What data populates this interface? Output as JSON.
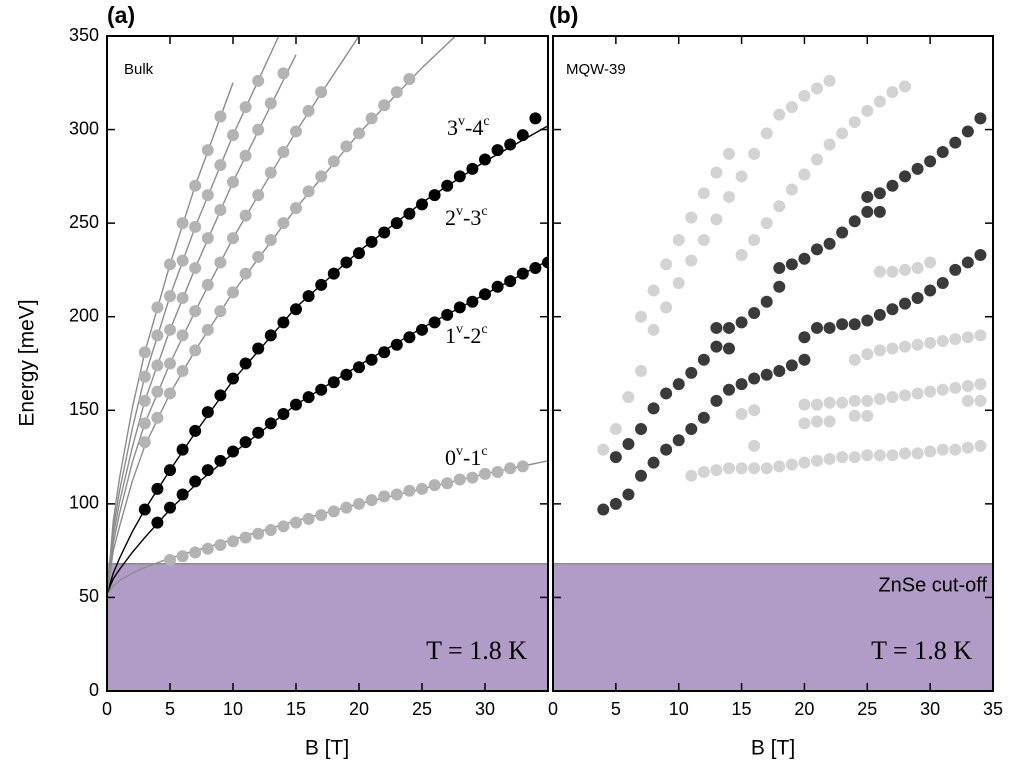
{
  "chart_data": [
    {
      "type": "scatter",
      "label": "(a)",
      "sample": "Bulk",
      "xlabel": "B [T]",
      "ylabel": "Energy [meV]",
      "xlim": [
        0,
        35
      ],
      "ylim": [
        0,
        350
      ],
      "xticks": [
        0,
        5,
        10,
        15,
        20,
        25,
        30
      ],
      "yticks": [
        0,
        50,
        100,
        150,
        200,
        250,
        300,
        350
      ],
      "ytick_labels": true,
      "cutoff": 68,
      "cutoff_color": "#b19cc7",
      "temperature_label": "T = 1.8 K",
      "annotations": [
        [
          "0",
          "v",
          "-1",
          "c"
        ],
        [
          "1",
          "v",
          "-2",
          "c"
        ],
        [
          "2",
          "v",
          "-3",
          "c"
        ],
        [
          "3",
          "v",
          "-4",
          "c"
        ]
      ],
      "series": [
        {
          "mode": "line",
          "color": "#8c8c8c",
          "x": [
            0,
            0.5,
            1,
            2,
            3,
            5,
            7,
            10,
            15,
            20,
            25,
            30,
            35
          ],
          "values": [
            52,
            56,
            59,
            63,
            66,
            71,
            75,
            81,
            91,
            100,
            108,
            116,
            123
          ]
        },
        {
          "mode": "line",
          "color": "#000000",
          "x": [
            0,
            0.5,
            1,
            2,
            3,
            5,
            7,
            10,
            15,
            20,
            25,
            30,
            35
          ],
          "values": [
            52,
            60,
            65,
            74,
            82,
            97,
            110,
            127,
            153,
            174,
            194,
            212,
            230
          ]
        },
        {
          "mode": "line",
          "color": "#000000",
          "x": [
            0,
            0.5,
            1,
            2,
            3,
            5,
            7,
            10,
            15,
            20,
            25,
            30,
            35
          ],
          "values": [
            52,
            63,
            71,
            85,
            97,
            118,
            138,
            166,
            205,
            235,
            261,
            283,
            302
          ]
        },
        {
          "mode": "line",
          "color": "#8c8c8c",
          "x": [
            0,
            0.5,
            1,
            2,
            3,
            5,
            7,
            10,
            15,
            20,
            25,
            30
          ],
          "values": [
            52,
            75,
            88,
            112,
            131,
            159,
            182,
            213,
            258,
            298,
            333,
            365
          ]
        },
        {
          "mode": "line",
          "color": "#8c8c8c",
          "x": [
            0,
            0.5,
            1,
            2,
            3,
            5,
            7,
            10,
            15,
            20
          ],
          "values": [
            52,
            79,
            95,
            122,
            143,
            175,
            203,
            242,
            299,
            350
          ]
        },
        {
          "mode": "line",
          "color": "#8c8c8c",
          "x": [
            0,
            0.5,
            1,
            2,
            3,
            5,
            7,
            10,
            15
          ],
          "values": [
            52,
            83,
            101,
            130,
            155,
            193,
            226,
            272,
            340
          ]
        },
        {
          "mode": "line",
          "color": "#8c8c8c",
          "x": [
            0,
            0.5,
            1,
            2,
            3,
            5,
            7,
            10,
            15
          ],
          "values": [
            52,
            87,
            107,
            140,
            168,
            211,
            248,
            297,
            370
          ]
        },
        {
          "mode": "line",
          "color": "#8c8c8c",
          "x": [
            0,
            0.5,
            1,
            2,
            3,
            5,
            7,
            10
          ],
          "values": [
            52,
            91,
            114,
            151,
            181,
            228,
            270,
            325
          ]
        },
        {
          "mode": "markers",
          "color": "#b3b3b3",
          "x": [
            5,
            6,
            7,
            8,
            9,
            10,
            11,
            12,
            13,
            14,
            15,
            16,
            17,
            18,
            19,
            20,
            21,
            22,
            23,
            24,
            25,
            26,
            27,
            28,
            29,
            30,
            31,
            32,
            33
          ],
          "values": [
            70,
            72,
            74,
            76,
            78,
            80,
            82,
            84,
            86,
            88,
            90,
            92,
            94,
            96,
            98,
            100,
            102,
            104,
            105,
            107,
            108,
            110,
            111,
            113,
            114,
            116,
            117,
            119,
            120
          ]
        },
        {
          "mode": "markers",
          "color": "#000000",
          "x": [
            4,
            5,
            6,
            7,
            8,
            9,
            10,
            11,
            12,
            13,
            14,
            15,
            16,
            17,
            18,
            19,
            20,
            21,
            22,
            23,
            24,
            25,
            26,
            27,
            28,
            29,
            30,
            31,
            32,
            33,
            34,
            35
          ],
          "values": [
            90,
            98,
            105,
            112,
            118,
            123,
            128,
            133,
            138,
            143,
            148,
            153,
            157,
            161,
            165,
            169,
            173,
            177,
            181,
            185,
            189,
            193,
            197,
            201,
            205,
            208,
            212,
            216,
            219,
            223,
            226,
            229
          ]
        },
        {
          "mode": "markers",
          "color": "#000000",
          "x": [
            3,
            4,
            5,
            6,
            7,
            8,
            9,
            10,
            11,
            12,
            13,
            14,
            15,
            16,
            17,
            18,
            19,
            20,
            21,
            22,
            23,
            24,
            25,
            26,
            27,
            28,
            29,
            30,
            31,
            32,
            33,
            34
          ],
          "values": [
            97,
            108,
            118,
            129,
            139,
            149,
            158,
            167,
            175,
            183,
            190,
            197,
            204,
            211,
            217,
            223,
            229,
            234,
            240,
            245,
            250,
            255,
            260,
            265,
            270,
            275,
            279,
            284,
            289,
            292,
            297,
            306
          ]
        },
        {
          "mode": "markers",
          "color": "#b3b3b3",
          "x": [
            3,
            4,
            5,
            6,
            7,
            8,
            9,
            10,
            11,
            12,
            13,
            14,
            15,
            16,
            17,
            18,
            19,
            20,
            21,
            22,
            23,
            24
          ],
          "values": [
            133,
            146,
            159,
            171,
            182,
            193,
            203,
            213,
            223,
            232,
            241,
            250,
            258,
            267,
            275,
            283,
            291,
            298,
            306,
            313,
            320,
            327
          ]
        },
        {
          "mode": "markers",
          "color": "#b3b3b3",
          "x": [
            3,
            4,
            5,
            6,
            7,
            8,
            9,
            10,
            11,
            12,
            13,
            14,
            15,
            16,
            17
          ],
          "values": [
            143,
            160,
            175,
            190,
            203,
            217,
            229,
            242,
            254,
            265,
            277,
            288,
            299,
            310,
            320
          ]
        },
        {
          "mode": "markers",
          "color": "#b3b3b3",
          "x": [
            3,
            4,
            5,
            6,
            7,
            8,
            9,
            10,
            11,
            12,
            13,
            14
          ],
          "values": [
            155,
            174,
            193,
            210,
            226,
            242,
            257,
            272,
            286,
            300,
            314,
            330
          ]
        },
        {
          "mode": "markers",
          "color": "#b3b3b3",
          "x": [
            3,
            4,
            5,
            6,
            7,
            8,
            9,
            10,
            11,
            12
          ],
          "values": [
            168,
            190,
            211,
            230,
            248,
            265,
            281,
            297,
            312,
            326
          ]
        },
        {
          "mode": "markers",
          "color": "#b3b3b3",
          "x": [
            3,
            4,
            5,
            6,
            7,
            8,
            9
          ],
          "values": [
            181,
            205,
            228,
            250,
            270,
            289,
            307
          ]
        }
      ]
    },
    {
      "type": "scatter",
      "label": "(b)",
      "sample": "MQW-39",
      "xlabel": "B [T]",
      "xlim": [
        0,
        35
      ],
      "ylim": [
        0,
        350
      ],
      "xticks": [
        0,
        5,
        10,
        15,
        20,
        25,
        30,
        35
      ],
      "yticks": [
        0,
        50,
        100,
        150,
        200,
        250,
        300,
        350
      ],
      "ytick_labels": false,
      "cutoff": 68,
      "cutoff_color": "#b19cc7",
      "cutoff_label": "ZnSe cut-off",
      "temperature_label": "T = 1.8 K",
      "series": [
        {
          "mode": "markers",
          "color": "#d3d3d3",
          "x": [
            11,
            12,
            13,
            14,
            15,
            16,
            17,
            18,
            19,
            20,
            21,
            22,
            23,
            24,
            25,
            26,
            27,
            28,
            29,
            30,
            31,
            32,
            33,
            34
          ],
          "values": [
            115,
            117,
            118,
            119,
            119,
            119,
            119,
            120,
            121,
            122,
            123,
            124,
            125,
            125,
            126,
            126,
            126,
            127,
            127,
            128,
            129,
            129,
            130,
            131
          ]
        },
        {
          "mode": "markers",
          "color": "#d3d3d3",
          "x": [
            15,
            16,
            16,
            20,
            21,
            22,
            20,
            21,
            22,
            23,
            24,
            24,
            25,
            25,
            26,
            27,
            28,
            29,
            30,
            31,
            32,
            33,
            34,
            33,
            34
          ],
          "values": [
            148,
            150,
            131,
            143,
            144,
            144,
            153,
            153,
            154,
            154,
            155,
            147,
            155,
            147,
            156,
            157,
            158,
            159,
            160,
            161,
            162,
            163,
            164,
            155,
            155
          ]
        },
        {
          "mode": "markers",
          "color": "#d3d3d3",
          "x": [
            24,
            25,
            26,
            27,
            28,
            29,
            30,
            31,
            32,
            33,
            34,
            26,
            27,
            28,
            29,
            30
          ],
          "values": [
            177,
            180,
            182,
            183,
            184,
            185,
            186,
            187,
            188,
            189,
            190,
            224,
            224,
            225,
            226,
            229
          ]
        },
        {
          "mode": "markers",
          "color": "#d3d3d3",
          "x": [
            4,
            5,
            6,
            7,
            7,
            8,
            9,
            10,
            11,
            12,
            13,
            14
          ],
          "values": [
            129,
            140,
            157,
            171,
            200,
            214,
            228,
            241,
            253,
            266,
            277,
            287
          ]
        },
        {
          "mode": "markers",
          "color": "#d3d3d3",
          "x": [
            8,
            9,
            10,
            11,
            12,
            13,
            14,
            15,
            16,
            17,
            18,
            19,
            20,
            21,
            22
          ],
          "values": [
            193,
            205,
            218,
            230,
            241,
            252,
            264,
            275,
            287,
            298,
            308,
            312,
            318,
            322,
            326
          ]
        },
        {
          "mode": "markers",
          "color": "#d3d3d3",
          "x": [
            15,
            16,
            17,
            18,
            19,
            20,
            21,
            22,
            23,
            24,
            25,
            26,
            27,
            28
          ],
          "values": [
            233,
            241,
            250,
            259,
            268,
            276,
            284,
            292,
            298,
            304,
            310,
            315,
            320,
            323
          ]
        },
        {
          "mode": "markers",
          "color": "#3a3a3a",
          "x": [
            4,
            5,
            6,
            7,
            8,
            9,
            10,
            11,
            12,
            13,
            14,
            15,
            16,
            17,
            18,
            19,
            20,
            20,
            21,
            22,
            23,
            24,
            25,
            26,
            27,
            28,
            29,
            30,
            31,
            32,
            33,
            34
          ],
          "values": [
            97,
            100,
            105,
            115,
            122,
            129,
            134,
            140,
            146,
            155,
            161,
            164,
            167,
            169,
            171,
            174,
            177,
            189,
            194,
            194,
            196,
            196,
            198,
            201,
            204,
            207,
            210,
            214,
            218,
            225,
            229,
            233
          ]
        },
        {
          "mode": "markers",
          "color": "#3a3a3a",
          "x": [
            5,
            6,
            7,
            8,
            9,
            10,
            11,
            12,
            13,
            13,
            14,
            14,
            15,
            16,
            17,
            18,
            18,
            19,
            20,
            21,
            22,
            23,
            24,
            25,
            25,
            26,
            26,
            27,
            28,
            29,
            30,
            31,
            32,
            33,
            34
          ],
          "values": [
            125,
            132,
            140,
            151,
            159,
            164,
            170,
            177,
            184,
            194,
            183,
            194,
            197,
            202,
            208,
            216,
            226,
            228,
            231,
            236,
            239,
            245,
            251,
            256,
            264,
            256,
            266,
            270,
            275,
            279,
            283,
            288,
            293,
            299,
            306
          ]
        }
      ]
    }
  ]
}
